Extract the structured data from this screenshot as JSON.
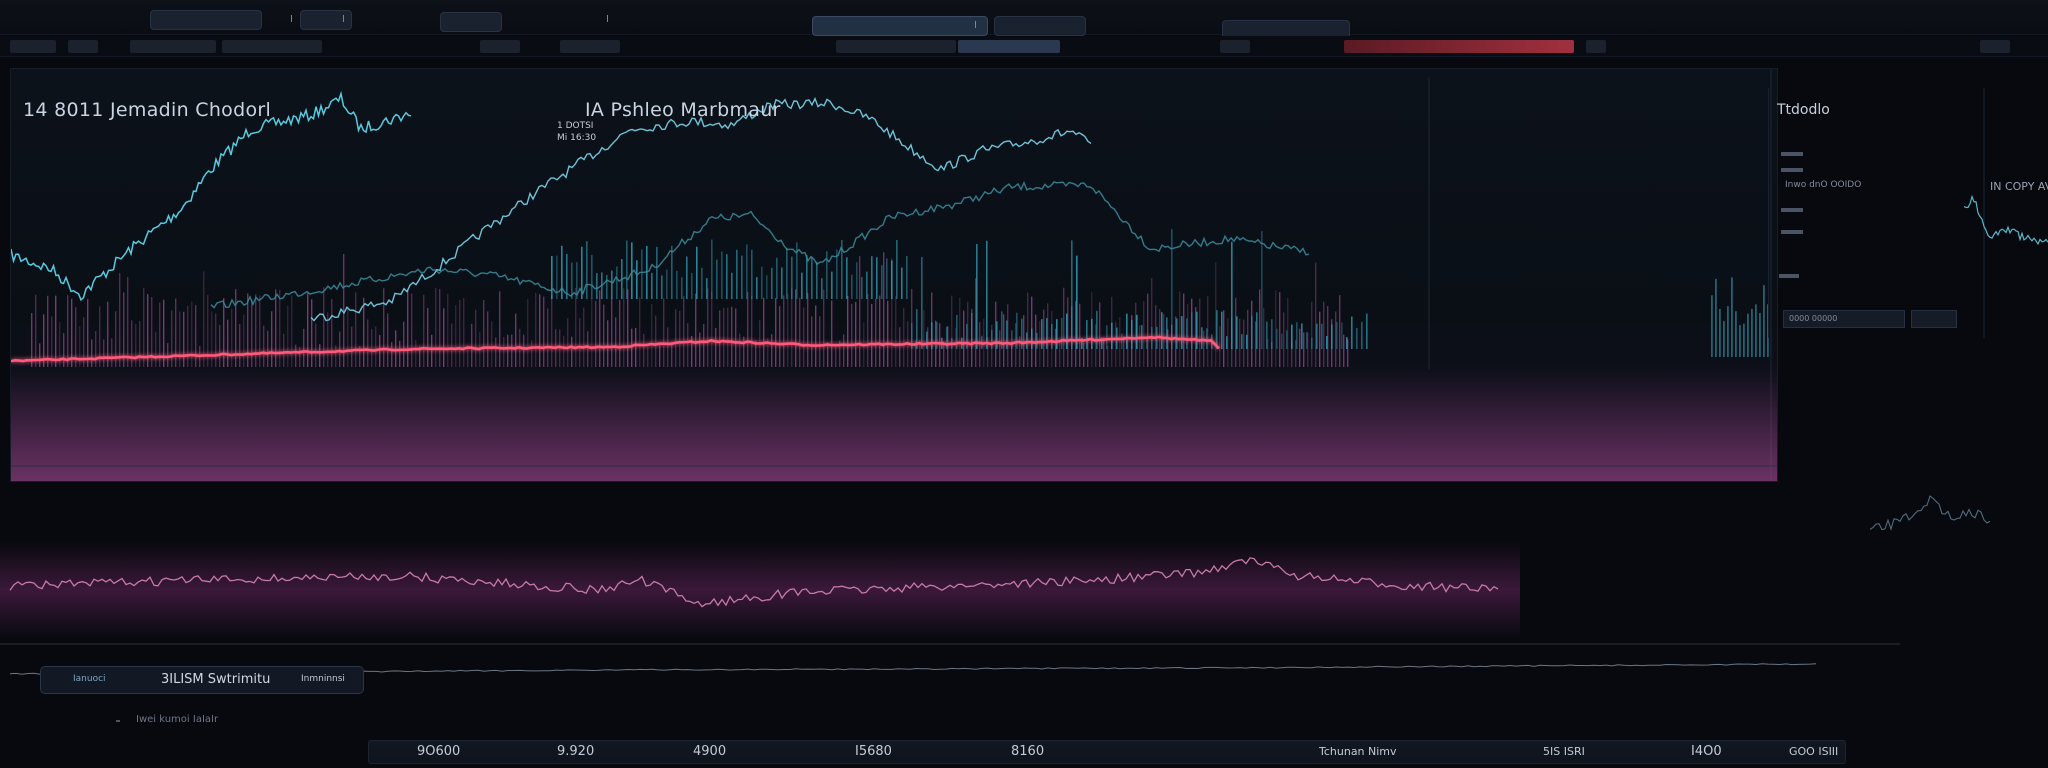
{
  "topbar": {
    "items": [
      "I",
      "I",
      "I",
      "I"
    ],
    "tabs": [
      "",
      ""
    ]
  },
  "subbar": {
    "items": [
      "",
      "",
      "",
      "",
      "",
      "",
      "",
      ""
    ]
  },
  "main_chart": {
    "title_left": "14 8011 Jemadin Chodorl",
    "title_center": "IA Pshleo Marbmaur",
    "legend_line1": "1 DOTSI",
    "legend_line2": "Mi  16:30",
    "colors": {
      "line_primary": "#4fc3d8",
      "line_secondary": "#6fb6c9",
      "line_tertiary": "#3b7a8c",
      "moving_average": "#ff5a7a",
      "volume_cyan": "#3aa6c0",
      "volume_magenta": "#b04e9c"
    }
  },
  "side_panel": {
    "title": "Ttdodlo",
    "row1": "Inwo dnO OOIDO",
    "row2": "IN COPY  AV",
    "box_label": "0000  00000"
  },
  "oscillator": {
    "colors": {
      "line": "#c77aa6",
      "glow": "#7a2a6e",
      "flat": "#6d7584"
    }
  },
  "footer": {
    "status_left": "Ianuoci",
    "status_main": "3ILISM Swtrimitu",
    "status_right": "Inmninnsi",
    "sub_label": "Iwei kumoi IaIaIr",
    "axis_labels": [
      "9O600",
      "9.920",
      "4900",
      "I5680",
      "8160",
      "Tchunan Nimv",
      "5IS  ISRI",
      "I4O0",
      "GOO  ISIII"
    ]
  }
}
